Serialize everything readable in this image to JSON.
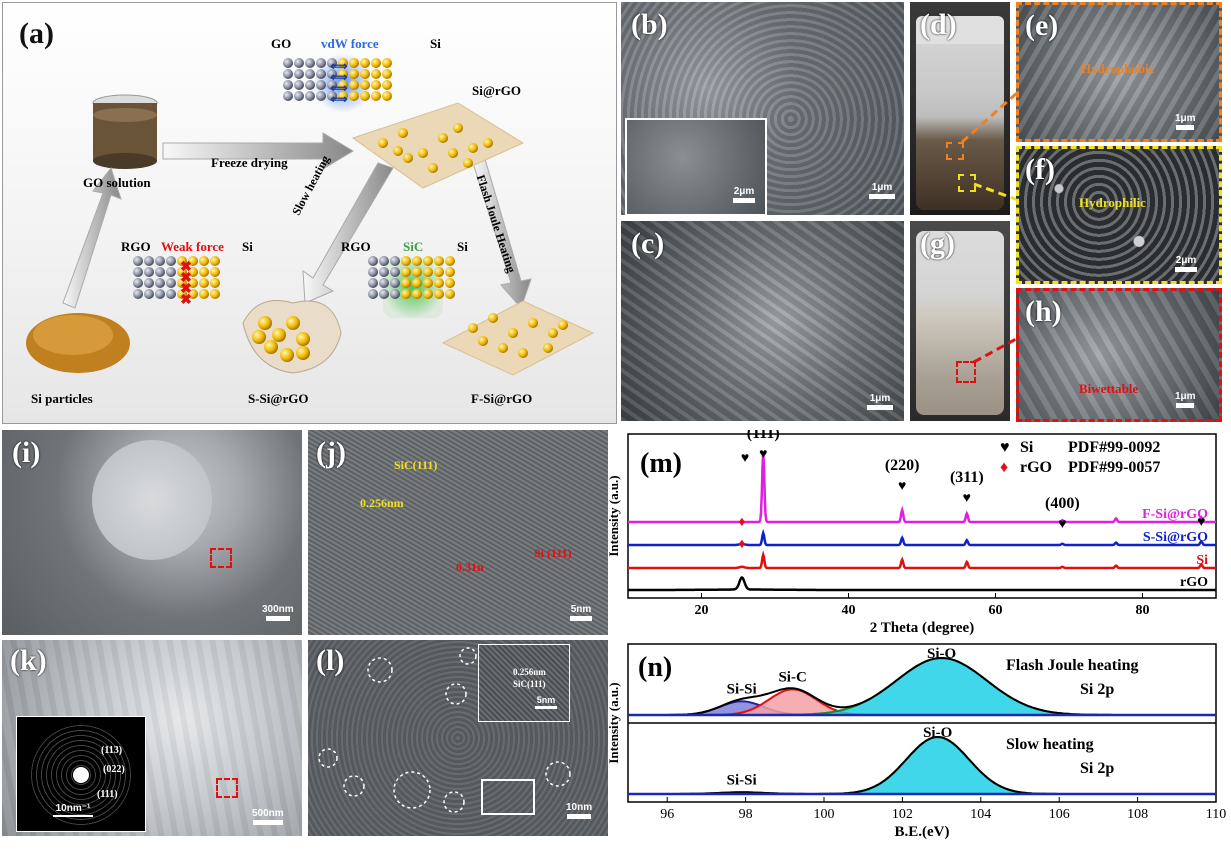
{
  "panel_a": {
    "label": "(a)",
    "go": "GO",
    "vdw": "vdW  force",
    "si1": "Si",
    "si_rgo": "Si@rGO",
    "freeze": "Freeze drying",
    "go_solution": "GO solution",
    "rgo1": "RGO",
    "weak": "Weak  force",
    "si2": "Si",
    "slow": "Slow heating",
    "rgo2": "RGO",
    "sic": "SiC",
    "si3": "Si",
    "flash": "Flash Joule Heating",
    "si_particles": "Si particles",
    "s_si_rgo": "S-Si@rGO",
    "f_si_rgo": "F-Si@rGO"
  },
  "panel_b": {
    "label": "(b)",
    "scale": "1μm",
    "inset_scale": "2μm"
  },
  "panel_c": {
    "label": "(c)",
    "scale": "1μm"
  },
  "panel_d": {
    "label": "(d)"
  },
  "panel_e": {
    "label": "(e)",
    "text": "Hydrophobic",
    "scale": "1μm"
  },
  "panel_f": {
    "label": "(f)",
    "text": "Hydrophilic",
    "scale": "2μm"
  },
  "panel_g": {
    "label": "(g)"
  },
  "panel_h": {
    "label": "(h)",
    "text": "Biwettable",
    "scale": "1μm"
  },
  "panel_i": {
    "label": "(i)",
    "scale": "300nm"
  },
  "panel_j": {
    "label": "(j)",
    "sic": "SiC(111)",
    "d1": "0.256nm",
    "d2": "0.31n",
    "si": "Si (111)",
    "scale": "5nm"
  },
  "panel_k": {
    "label": "(k)",
    "scale": "500nm",
    "r1": "(113)",
    "r2": "(022)",
    "r3": "(111)",
    "inset_scale": "10nm⁻¹"
  },
  "panel_l": {
    "label": "(l)",
    "d": "0.256nm",
    "sic": "SiC(111)",
    "inset_scale": "5nm",
    "scale": "10nm"
  },
  "chart_data": [
    {
      "type": "line",
      "panel": "(m)",
      "xlabel": "2 Theta (degree)",
      "ylabel": "Intensity (a.u.)",
      "xlim": [
        10,
        90
      ],
      "xticks": [
        20,
        40,
        60,
        80
      ],
      "legend": [
        {
          "marker": "♥",
          "name": "Si",
          "pdf": "PDF#99-0092",
          "color": "#000000"
        },
        {
          "marker": "♦",
          "name": "rGO",
          "pdf": "PDF#99-0057",
          "color": "#e0101a"
        }
      ],
      "peak_labels": [
        {
          "text": "(111)",
          "x": 28.4
        },
        {
          "text": "(220)",
          "x": 47.3
        },
        {
          "text": "(311)",
          "x": 56.1
        },
        {
          "text": "(400)",
          "x": 69.1
        }
      ],
      "series": [
        {
          "name": "F-Si@rGO",
          "color": "#e020e0",
          "offset": 3
        },
        {
          "name": "S-Si@rGO",
          "color": "#1020d0",
          "offset": 2
        },
        {
          "name": "Si",
          "color": "#e01010",
          "offset": 1
        },
        {
          "name": "rGO",
          "color": "#000000",
          "offset": 0
        }
      ],
      "peaks": [
        {
          "x": 25.5,
          "height": [
            0,
            0.1,
            0.1,
            1.0
          ]
        },
        {
          "x": 28.4,
          "height": [
            2.3,
            1.0,
            1.1,
            0
          ]
        },
        {
          "x": 47.3,
          "height": [
            1.0,
            0.6,
            0.7,
            0
          ]
        },
        {
          "x": 56.1,
          "height": [
            0.7,
            0.4,
            0.5,
            0
          ]
        },
        {
          "x": 69.1,
          "height": [
            0.15,
            0.1,
            0.1,
            0
          ]
        },
        {
          "x": 76.4,
          "height": [
            0.3,
            0.2,
            0.2,
            0
          ]
        },
        {
          "x": 88.0,
          "height": [
            0.4,
            0.3,
            0.3,
            0
          ]
        }
      ]
    },
    {
      "type": "area",
      "panel": "(n)",
      "xlabel": "B.E.(eV)",
      "ylabel": "Intensity (a.u.)",
      "xlim": [
        95,
        110
      ],
      "xticks": [
        96,
        98,
        100,
        102,
        104,
        106,
        108,
        110
      ],
      "subplots": [
        {
          "title": "Flash Joule heating",
          "subtitle": "Si 2p",
          "components": [
            {
              "name": "Si-Si",
              "center": 97.9,
              "height": 0.24,
              "width": 0.55,
              "fill": "#8080dd",
              "line": "#2020a0"
            },
            {
              "name": "Si-C",
              "center": 99.2,
              "height": 0.45,
              "width": 0.6,
              "fill": "#f4a0a8",
              "line": "#e01010"
            },
            {
              "name": "Si-O",
              "center": 103.0,
              "height": 1.0,
              "width": 1.15,
              "fill": "#20d0e8",
              "line": "#1a8a2a"
            }
          ]
        },
        {
          "title": "Slow heating",
          "subtitle": "Si 2p",
          "components": [
            {
              "name": "Si-Si",
              "center": 97.9,
              "height": 0.03,
              "width": 0.6,
              "fill": "#f4a0a8",
              "line": "#e01010"
            },
            {
              "name": "Si-O",
              "center": 102.9,
              "height": 1.0,
              "width": 0.8,
              "fill": "#20d0e8",
              "line": "#1a8a2a"
            }
          ]
        }
      ]
    }
  ]
}
